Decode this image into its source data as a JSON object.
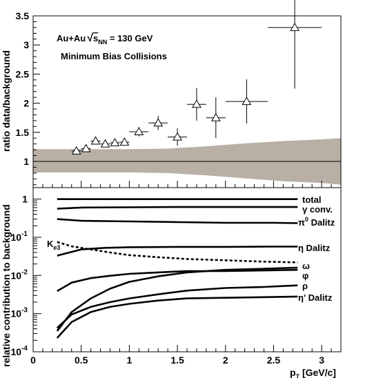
{
  "chart_data": [
    {
      "type": "scatter",
      "ylabel": "ratio data/background",
      "ylim": [
        0.55,
        3.5
      ],
      "xlim": [
        0,
        3.2
      ],
      "yticks": [
        1,
        1.5,
        2,
        2.5,
        3,
        3.5
      ],
      "ytick_labels": [
        "1",
        "1.5",
        "2",
        "2.5",
        "3",
        "3.5"
      ],
      "reference_line_y": 1,
      "annotations": {
        "system": "Au+Au",
        "energy_sym": "s",
        "energy_sub": "NN",
        "energy_value": " = 130 GeV",
        "selection": "Minimum Bias Collisions"
      },
      "points": [
        {
          "x": 0.45,
          "y": 1.18,
          "xerr": 0.05,
          "yerr": 0.05
        },
        {
          "x": 0.55,
          "y": 1.22,
          "xerr": 0.05,
          "yerr": 0.05
        },
        {
          "x": 0.65,
          "y": 1.35,
          "xerr": 0.05,
          "yerr": 0.05
        },
        {
          "x": 0.75,
          "y": 1.3,
          "xerr": 0.05,
          "yerr": 0.05
        },
        {
          "x": 0.85,
          "y": 1.32,
          "xerr": 0.05,
          "yerr": 0.05
        },
        {
          "x": 0.95,
          "y": 1.33,
          "xerr": 0.05,
          "yerr": 0.05
        },
        {
          "x": 1.1,
          "y": 1.51,
          "xerr": 0.1,
          "yerr": 0.08
        },
        {
          "x": 1.3,
          "y": 1.66,
          "xerr": 0.1,
          "yerr": 0.12
        },
        {
          "x": 1.5,
          "y": 1.42,
          "xerr": 0.1,
          "yerr": 0.15
        },
        {
          "x": 1.7,
          "y": 1.98,
          "xerr": 0.1,
          "yerr": 0.28
        },
        {
          "x": 1.9,
          "y": 1.75,
          "xerr": 0.1,
          "yerr": 0.35
        },
        {
          "x": 2.22,
          "y": 2.03,
          "xerr": 0.22,
          "yerr": 0.38
        },
        {
          "x": 2.72,
          "y": 3.3,
          "xerr": 0.28,
          "yerr": 1.05
        }
      ],
      "systematic_band": {
        "color": "#b8afa5",
        "x": [
          0,
          0.3,
          0.6,
          1.0,
          1.4,
          1.8,
          2.2,
          2.6,
          3.0,
          3.2
        ],
        "upper": [
          1.21,
          1.21,
          1.21,
          1.21,
          1.22,
          1.26,
          1.31,
          1.35,
          1.38,
          1.4
        ],
        "lower": [
          0.81,
          0.81,
          0.81,
          0.81,
          0.8,
          0.76,
          0.71,
          0.66,
          0.63,
          0.6
        ]
      }
    },
    {
      "type": "line",
      "ylabel": "relative contribution to background",
      "xlabel_main": "p",
      "xlabel_sub": "T",
      "xlabel_unit": " [GeV/c]",
      "log_y": true,
      "ylim": [
        0.0001,
        2
      ],
      "xlim": [
        0,
        3.2
      ],
      "xticks": [
        0,
        0.5,
        1,
        1.5,
        2,
        2.5,
        3
      ],
      "xtick_labels": [
        "0",
        "0.5",
        "1",
        "1.5",
        "2",
        "2.5",
        "3"
      ],
      "yticks": [
        1,
        0.1,
        0.01,
        0.001,
        0.0001
      ],
      "ytick_labels": [
        {
          "base": "1",
          "exp": ""
        },
        {
          "base": "10",
          "exp": "-1"
        },
        {
          "base": "10",
          "exp": "-2"
        },
        {
          "base": "10",
          "exp": "-3"
        },
        {
          "base": "10",
          "exp": "-4"
        }
      ],
      "series": [
        {
          "name": "total",
          "label": {
            "main": "total",
            "sup": ""
          },
          "dashed": false,
          "x": [
            0.25,
            0.5,
            1.0,
            1.5,
            2.0,
            2.5,
            2.75
          ],
          "y": [
            1.0,
            1.0,
            1.0,
            1.0,
            1.0,
            1.0,
            1.0
          ]
        },
        {
          "name": "γ conv.",
          "label": {
            "main": "γ conv.",
            "sup": ""
          },
          "dashed": false,
          "x": [
            0.25,
            0.5,
            1.0,
            1.5,
            2.0,
            2.5,
            2.75
          ],
          "y": [
            0.56,
            0.6,
            0.61,
            0.62,
            0.62,
            0.62,
            0.62
          ]
        },
        {
          "name": "π0 Dalitz",
          "label": {
            "main": "π",
            "sup": "0",
            "rest": " Dalitz"
          },
          "dashed": false,
          "x": [
            0.25,
            0.5,
            1.0,
            1.5,
            2.0,
            2.5,
            2.75
          ],
          "y": [
            0.3,
            0.27,
            0.26,
            0.25,
            0.24,
            0.24,
            0.235
          ]
        },
        {
          "name": "η Dalitz",
          "label": {
            "main": "η Dalitz",
            "sup": ""
          },
          "dashed": false,
          "x": [
            0.25,
            0.5,
            0.75,
            1.0,
            1.5,
            2.0,
            2.5,
            2.75
          ],
          "y": [
            0.033,
            0.048,
            0.053,
            0.055,
            0.056,
            0.056,
            0.057,
            0.057
          ]
        },
        {
          "name": "Ke3",
          "label": {
            "main": "K",
            "sub": "e3"
          },
          "dashed": true,
          "x": [
            0.25,
            0.4,
            0.6,
            0.8,
            1.0,
            1.3,
            1.6,
            2.0,
            2.4,
            2.75
          ],
          "y": [
            0.075,
            0.058,
            0.048,
            0.04,
            0.034,
            0.03,
            0.027,
            0.025,
            0.023,
            0.022
          ]
        },
        {
          "name": "ω",
          "label": {
            "main": "ω",
            "sup": ""
          },
          "dashed": false,
          "x": [
            0.25,
            0.4,
            0.6,
            0.8,
            1.0,
            1.3,
            1.6,
            2.0,
            2.4,
            2.75
          ],
          "y": [
            0.00035,
            0.0011,
            0.0025,
            0.0045,
            0.0068,
            0.0095,
            0.012,
            0.014,
            0.015,
            0.016
          ]
        },
        {
          "name": "φ",
          "label": {
            "main": "φ",
            "sup": ""
          },
          "dashed": false,
          "x": [
            0.25,
            0.4,
            0.6,
            0.8,
            1.0,
            1.3,
            1.6,
            2.0,
            2.4,
            2.75
          ],
          "y": [
            0.0039,
            0.0065,
            0.0085,
            0.0098,
            0.011,
            0.012,
            0.013,
            0.013,
            0.0135,
            0.014
          ]
        },
        {
          "name": "ρ",
          "label": {
            "main": "ρ",
            "sup": ""
          },
          "dashed": false,
          "x": [
            0.25,
            0.4,
            0.6,
            0.8,
            1.0,
            1.3,
            1.6,
            2.0,
            2.4,
            2.75
          ],
          "y": [
            0.00042,
            0.00095,
            0.0015,
            0.002,
            0.0025,
            0.0032,
            0.004,
            0.0047,
            0.005,
            0.0055
          ]
        },
        {
          "name": "η' Dalitz",
          "label": {
            "main": "η' Dalitz",
            "sup": ""
          },
          "dashed": false,
          "x": [
            0.25,
            0.4,
            0.6,
            0.8,
            1.0,
            1.3,
            1.6,
            2.0,
            2.4,
            2.75
          ],
          "y": [
            0.00023,
            0.0006,
            0.0011,
            0.0015,
            0.0018,
            0.0022,
            0.0025,
            0.0026,
            0.0027,
            0.0028
          ]
        }
      ]
    }
  ]
}
